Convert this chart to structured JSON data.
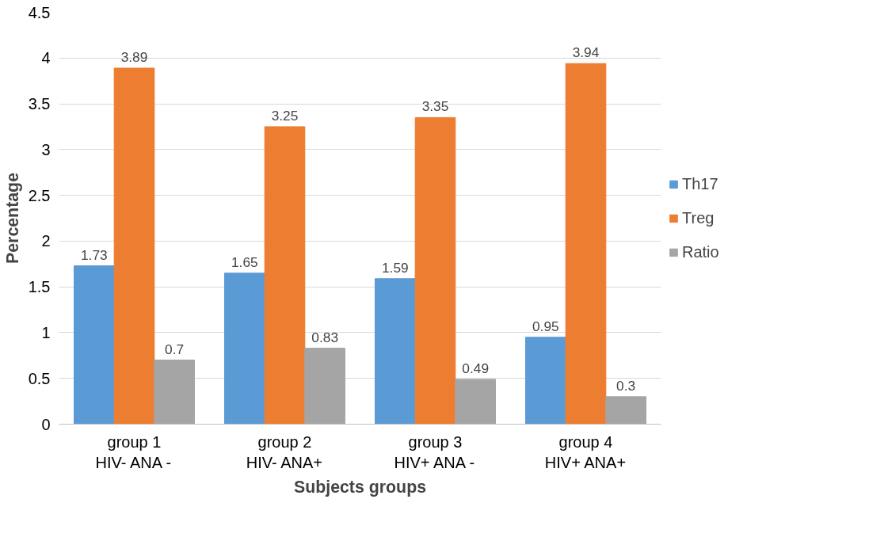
{
  "chart_data": {
    "type": "bar",
    "xlabel": "Subjects groups",
    "ylabel": "Percentage",
    "categories": [
      "group 1\nHIV- ANA -",
      "group 2\nHIV- ANA+",
      "group 3\nHIV+ ANA -",
      "group 4\nHIV+ ANA+"
    ],
    "series": [
      {
        "name": "Th17",
        "color": "#5b9bd5",
        "values": [
          1.73,
          1.65,
          1.59,
          0.95
        ]
      },
      {
        "name": "Treg",
        "color": "#ed7d31",
        "values": [
          3.89,
          3.25,
          3.35,
          3.94
        ]
      },
      {
        "name": "Ratio",
        "color": "#a5a5a5",
        "values": [
          0.7,
          0.83,
          0.49,
          0.3
        ]
      }
    ],
    "ylim": [
      0,
      4.5
    ],
    "yticks": [
      0,
      0.5,
      1,
      1.5,
      2,
      2.5,
      3,
      3.5,
      4,
      4.5
    ],
    "grid": "y",
    "legend": "right",
    "data_labels": true
  }
}
